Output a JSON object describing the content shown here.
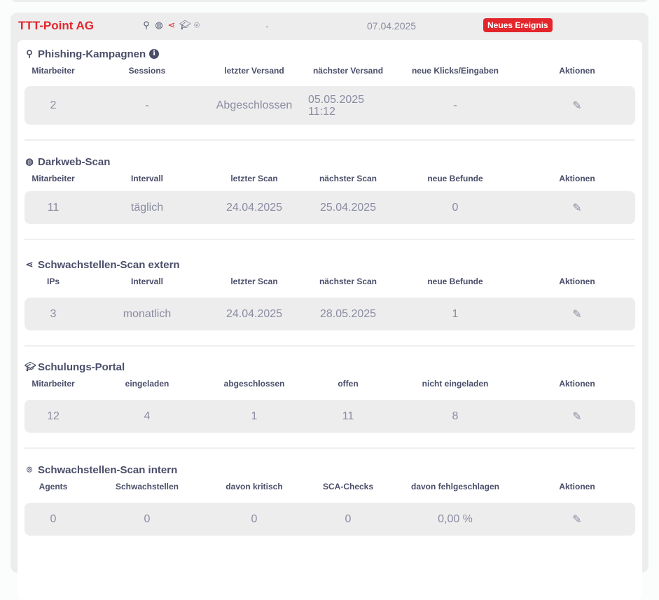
{
  "company": {
    "name": "TTT-Point AG",
    "status_dash": "-",
    "date": "07.04.2025",
    "badge": "Neues Ereignis",
    "icons": [
      "phishing-hook-icon",
      "fingerprint-icon",
      "share-nodes-icon",
      "graduation-cap-icon",
      "scan-icon"
    ],
    "active_icon": "share-nodes-icon",
    "accent": "#e3262b"
  },
  "sections": [
    {
      "title": "Phishing-Kampagnen",
      "icon": "phishing-hook-icon",
      "info": "i",
      "headers": [
        "Mitarbeiter",
        "Sessions",
        "letzter Versand",
        "nächster Versand",
        "neue Klicks/Eingaben",
        "Aktionen"
      ],
      "values": [
        "2",
        "-",
        "Abgeschlossen",
        "05.05.2025 11:12",
        "-"
      ],
      "next_line1": "05.05.2025",
      "next_line2": "11:12"
    },
    {
      "title": "Darkweb-Scan",
      "icon": "fingerprint-icon",
      "headers": [
        "Mitarbeiter",
        "Intervall",
        "letzter Scan",
        "nächster Scan",
        "neue Befunde",
        "Aktionen"
      ],
      "values": [
        "11",
        "täglich",
        "24.04.2025",
        "25.04.2025",
        "0"
      ]
    },
    {
      "title": "Schwachstellen-Scan extern",
      "icon": "share-nodes-icon",
      "headers": [
        "IPs",
        "Intervall",
        "letzter Scan",
        "nächster Scan",
        "neue Befunde",
        "Aktionen"
      ],
      "values": [
        "3",
        "monatlich",
        "24.04.2025",
        "28.05.2025",
        "1"
      ]
    },
    {
      "title": "Schulungs-Portal",
      "icon": "graduation-cap-icon",
      "headers": [
        "Mitarbeiter",
        "eingeladen",
        "abgeschlossen",
        "offen",
        "nicht eingeladen",
        "Aktionen"
      ],
      "values": [
        "12",
        "4",
        "1",
        "11",
        "8"
      ]
    },
    {
      "title": "Schwachstellen-Scan intern",
      "icon": "scan-icon",
      "headers": [
        "Agents",
        "Schwachstellen",
        "davon kritisch",
        "SCA-Checks",
        "davon fehlgeschlagen",
        "Aktionen"
      ],
      "values": [
        "0",
        "0",
        "0",
        "0",
        "0,00 %"
      ]
    }
  ]
}
